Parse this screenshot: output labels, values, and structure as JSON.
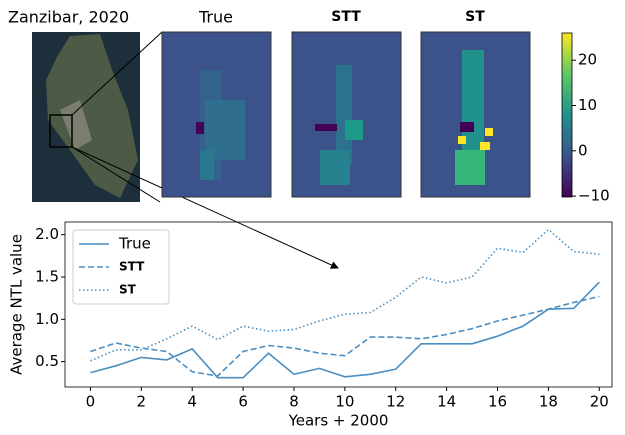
{
  "figure": {
    "title": "Zanzibar, 2020",
    "panels": [
      "True",
      "STT",
      "ST"
    ]
  },
  "chart_data": [
    {
      "type": "colorbar",
      "colormap": "viridis",
      "ylim": [
        -10.2,
        26
      ],
      "yticks": [
        {
          "value": -10,
          "label": "−10"
        },
        0,
        10,
        20
      ]
    },
    {
      "type": "line",
      "xlabel": "Years + 2000",
      "ylabel": "Average NTL value",
      "x": [
        0,
        1,
        2,
        3,
        4,
        5,
        6,
        7,
        8,
        9,
        10,
        11,
        12,
        13,
        14,
        15,
        16,
        17,
        18,
        19,
        20
      ],
      "xlim": [
        -1,
        20.5
      ],
      "ylim": [
        0.2,
        2.15
      ],
      "xticks": [
        0,
        2,
        4,
        6,
        8,
        10,
        12,
        14,
        16,
        18,
        20
      ],
      "yticks": [
        {
          "value": 0.5,
          "label": "0.5"
        },
        {
          "value": 1,
          "label": "1.0"
        },
        {
          "value": 1.5,
          "label": "1.5"
        },
        {
          "value": 2,
          "label": "2.0"
        }
      ],
      "legend": "upper left",
      "series": [
        {
          "name": "True",
          "color": "#4b8fc2",
          "dash": "solid",
          "values": [
            0.37,
            0.45,
            0.55,
            0.52,
            0.65,
            0.31,
            0.31,
            0.6,
            0.35,
            0.42,
            0.32,
            0.35,
            0.41,
            0.71,
            0.71,
            0.71,
            0.8,
            0.92,
            1.12,
            1.13,
            1.44
          ]
        },
        {
          "name": "STT",
          "color": "#4b8fc2",
          "dash": "dashed",
          "values": [
            0.62,
            0.72,
            0.66,
            0.62,
            0.38,
            0.33,
            0.62,
            0.69,
            0.66,
            0.6,
            0.57,
            0.79,
            0.79,
            0.77,
            0.82,
            0.89,
            0.98,
            1.05,
            1.12,
            1.2,
            1.27
          ]
        },
        {
          "name": "ST",
          "color": "#4b8fc2",
          "dash": "dotted",
          "values": [
            0.51,
            0.64,
            0.64,
            0.77,
            0.92,
            0.76,
            0.92,
            0.86,
            0.88,
            0.98,
            1.06,
            1.08,
            1.26,
            1.5,
            1.43,
            1.5,
            1.84,
            1.79,
            2.06,
            1.8,
            1.77
          ]
        }
      ]
    }
  ]
}
